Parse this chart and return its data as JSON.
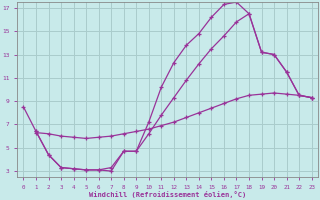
{
  "xlabel": "Windchill (Refroidissement éolien,°C)",
  "bg_color": "#c8eaea",
  "grid_color": "#aacccc",
  "line_color": "#993399",
  "xlim": [
    -0.5,
    23.5
  ],
  "ylim": [
    2.5,
    17.5
  ],
  "yticks": [
    3,
    5,
    7,
    9,
    11,
    13,
    15,
    17
  ],
  "xticks": [
    0,
    1,
    2,
    3,
    4,
    5,
    6,
    7,
    8,
    9,
    10,
    11,
    12,
    13,
    14,
    15,
    16,
    17,
    18,
    19,
    20,
    21,
    22,
    23
  ],
  "curve1_x": [
    0,
    1,
    2,
    3,
    4,
    5,
    6,
    7,
    8,
    9,
    10,
    11,
    12,
    13,
    14,
    15,
    16,
    17,
    18,
    19,
    20,
    21,
    22,
    23
  ],
  "curve1_y": [
    8.5,
    6.4,
    4.4,
    3.3,
    3.2,
    3.1,
    3.1,
    3.0,
    4.7,
    4.7,
    7.2,
    10.2,
    12.3,
    13.8,
    14.8,
    16.2,
    17.3,
    17.5,
    16.5,
    13.2,
    13.0,
    11.5,
    9.5,
    9.3
  ],
  "curve2_x": [
    1,
    2,
    3,
    4,
    5,
    6,
    7,
    8,
    9,
    10,
    11,
    12,
    13,
    14,
    15,
    16,
    17,
    18,
    19,
    20,
    21,
    22,
    23
  ],
  "curve2_y": [
    6.3,
    6.2,
    6.0,
    5.9,
    5.8,
    5.9,
    6.0,
    6.2,
    6.4,
    6.6,
    6.9,
    7.2,
    7.6,
    8.0,
    8.4,
    8.8,
    9.2,
    9.5,
    9.6,
    9.7,
    9.6,
    9.5,
    9.3
  ],
  "curve3_x": [
    1,
    2,
    3,
    4,
    5,
    6,
    7,
    8,
    9,
    10,
    11,
    12,
    13,
    14,
    15,
    16,
    17,
    18,
    19,
    20,
    21,
    22,
    23
  ],
  "curve3_y": [
    6.4,
    4.4,
    3.3,
    3.2,
    3.1,
    3.1,
    3.3,
    4.7,
    4.7,
    6.2,
    7.8,
    9.3,
    10.8,
    12.2,
    13.5,
    14.6,
    15.8,
    16.5,
    13.2,
    13.0,
    11.5,
    9.5,
    9.3
  ]
}
